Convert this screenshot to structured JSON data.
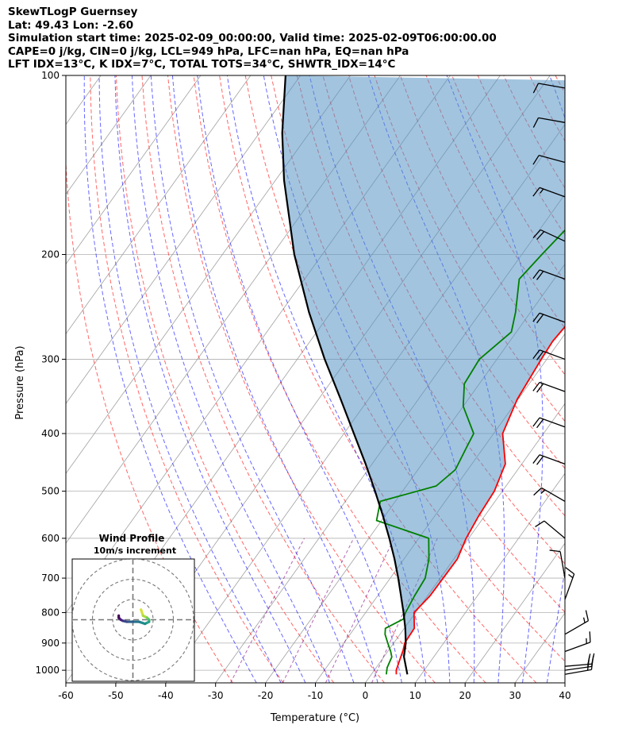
{
  "header": {
    "title": "SkewTLogP Guernsey",
    "location": "Lat: 49.43   Lon: -2.60",
    "times": "Simulation start time: 2025-02-09_00:00:00, Valid time: 2025-02-09T06:00:00.00",
    "indices1": "CAPE=0 j/kg, CIN=0 j/kg, LCL=949 hPa, LFC=nan hPa, EQ=nan hPa",
    "indices2": "LFT IDX=13°C, K IDX=7°C, TOTAL TOTS=34°C, SHWTR_IDX=14°C"
  },
  "colors": {
    "temperature": "#ff0000",
    "dewpoint": "#008000",
    "parcel": "#000000",
    "cape_fill": "#5594c4",
    "dry_adiabat": "#ff0000",
    "moist_adiabat": "#0000ff",
    "mixing_ratio": "#800080",
    "isotherm": "#808080"
  },
  "chart_data": {
    "type": "skew-t log-p",
    "xlabel": "Temperature (°C)",
    "ylabel": "Pressure (hPa)",
    "xlim": [
      -60,
      40
    ],
    "ylim": [
      1050,
      100
    ],
    "yscale": "log",
    "grid": true,
    "x_ticks": [
      -60,
      -50,
      -40,
      -30,
      -20,
      -10,
      0,
      10,
      20,
      30,
      40
    ],
    "y_ticks": [
      100,
      200,
      300,
      400,
      500,
      600,
      700,
      800,
      900,
      1000
    ],
    "series": [
      {
        "name": "temperature",
        "points": [
          [
            1016,
            5.0
          ],
          [
            1000,
            4.4
          ],
          [
            960,
            3.6
          ],
          [
            925,
            2.9
          ],
          [
            900,
            2.2
          ],
          [
            850,
            2.0
          ],
          [
            800,
            -0.3
          ],
          [
            750,
            0.5
          ],
          [
            700,
            0.6
          ],
          [
            650,
            0.7
          ],
          [
            600,
            -0.5
          ],
          [
            550,
            -1.2
          ],
          [
            500,
            -1.6
          ],
          [
            450,
            -3.3
          ],
          [
            400,
            -8.2
          ],
          [
            350,
            -10.2
          ],
          [
            300,
            -11.1
          ],
          [
            280,
            -11.4
          ],
          [
            260,
            -10.9
          ],
          [
            230,
            -7.4
          ],
          [
            200,
            -3.4
          ],
          [
            170,
            1.8
          ],
          [
            140,
            5.8
          ],
          [
            120,
            10.8
          ],
          [
            100,
            16.8
          ]
        ]
      },
      {
        "name": "dewpoint",
        "points": [
          [
            1016,
            3.0
          ],
          [
            990,
            2.2
          ],
          [
            950,
            1.6
          ],
          [
            930,
            0.6
          ],
          [
            900,
            -1.2
          ],
          [
            870,
            -3.0
          ],
          [
            850,
            -3.8
          ],
          [
            820,
            -1.5
          ],
          [
            800,
            -2.0
          ],
          [
            750,
            -2.6
          ],
          [
            700,
            -3.0
          ],
          [
            650,
            -5.0
          ],
          [
            600,
            -8.0
          ],
          [
            560,
            -21.0
          ],
          [
            520,
            -23.0
          ],
          [
            490,
            -14.0
          ],
          [
            460,
            -12.5
          ],
          [
            420,
            -13.5
          ],
          [
            400,
            -14.0
          ],
          [
            360,
            -20.0
          ],
          [
            330,
            -23.0
          ],
          [
            300,
            -23.5
          ],
          [
            270,
            -21.0
          ],
          [
            250,
            -23.0
          ],
          [
            220,
            -27.0
          ],
          [
            200,
            -26.0
          ],
          [
            170,
            -24.0
          ],
          [
            150,
            -21.0
          ],
          [
            130,
            -14.0
          ],
          [
            115,
            -8.0
          ],
          [
            100,
            0.0
          ]
        ]
      },
      {
        "name": "parcel",
        "points": [
          [
            1016,
            7.2
          ],
          [
            949,
            4.0
          ],
          [
            900,
            2.4
          ],
          [
            850,
            0.2
          ],
          [
            800,
            -2.4
          ],
          [
            750,
            -5.3
          ],
          [
            700,
            -8.4
          ],
          [
            650,
            -11.9
          ],
          [
            600,
            -15.9
          ],
          [
            550,
            -20.4
          ],
          [
            500,
            -25.5
          ],
          [
            450,
            -31.3
          ],
          [
            400,
            -38.0
          ],
          [
            350,
            -45.6
          ],
          [
            300,
            -54.5
          ],
          [
            250,
            -64.4
          ],
          [
            200,
            -75.6
          ],
          [
            150,
            -88.3
          ],
          [
            125,
            -95.4
          ],
          [
            100,
            -103.0
          ]
        ]
      }
    ],
    "wind_barbs": [
      {
        "p": 1016,
        "speed_kt": 20,
        "dir_deg": 80
      },
      {
        "p": 1000,
        "speed_kt": 20,
        "dir_deg": 82
      },
      {
        "p": 985,
        "speed_kt": 20,
        "dir_deg": 85
      },
      {
        "p": 930,
        "speed_kt": 15,
        "dir_deg": 70
      },
      {
        "p": 870,
        "speed_kt": 15,
        "dir_deg": 60
      },
      {
        "p": 760,
        "speed_kt": 15,
        "dir_deg": 20
      },
      {
        "p": 700,
        "speed_kt": 10,
        "dir_deg": 350
      },
      {
        "p": 600,
        "speed_kt": 10,
        "dir_deg": 310
      },
      {
        "p": 520,
        "speed_kt": 15,
        "dir_deg": 300
      },
      {
        "p": 450,
        "speed_kt": 20,
        "dir_deg": 290
      },
      {
        "p": 390,
        "speed_kt": 20,
        "dir_deg": 290
      },
      {
        "p": 340,
        "speed_kt": 20,
        "dir_deg": 290
      },
      {
        "p": 300,
        "speed_kt": 20,
        "dir_deg": 290
      },
      {
        "p": 260,
        "speed_kt": 20,
        "dir_deg": 290
      },
      {
        "p": 220,
        "speed_kt": 20,
        "dir_deg": 290
      },
      {
        "p": 190,
        "speed_kt": 20,
        "dir_deg": 295
      },
      {
        "p": 160,
        "speed_kt": 15,
        "dir_deg": 290
      },
      {
        "p": 140,
        "speed_kt": 10,
        "dir_deg": 285
      },
      {
        "p": 120,
        "speed_kt": 10,
        "dir_deg": 280
      },
      {
        "p": 105,
        "speed_kt": 10,
        "dir_deg": 280
      }
    ],
    "hodograph": {
      "title": "Wind Profile",
      "subtitle": "10m/s increment",
      "rings": [
        10,
        20,
        30
      ],
      "points": [
        [
          4,
          5
        ],
        [
          5,
          2
        ],
        [
          7,
          1
        ],
        [
          8,
          0
        ],
        [
          8,
          -1
        ],
        [
          6,
          -2
        ],
        [
          3,
          -1
        ],
        [
          0,
          -1
        ],
        [
          -3,
          -1
        ],
        [
          -5,
          -0.5
        ],
        [
          -6,
          0
        ],
        [
          -7,
          1
        ],
        [
          -7,
          2
        ]
      ]
    }
  }
}
